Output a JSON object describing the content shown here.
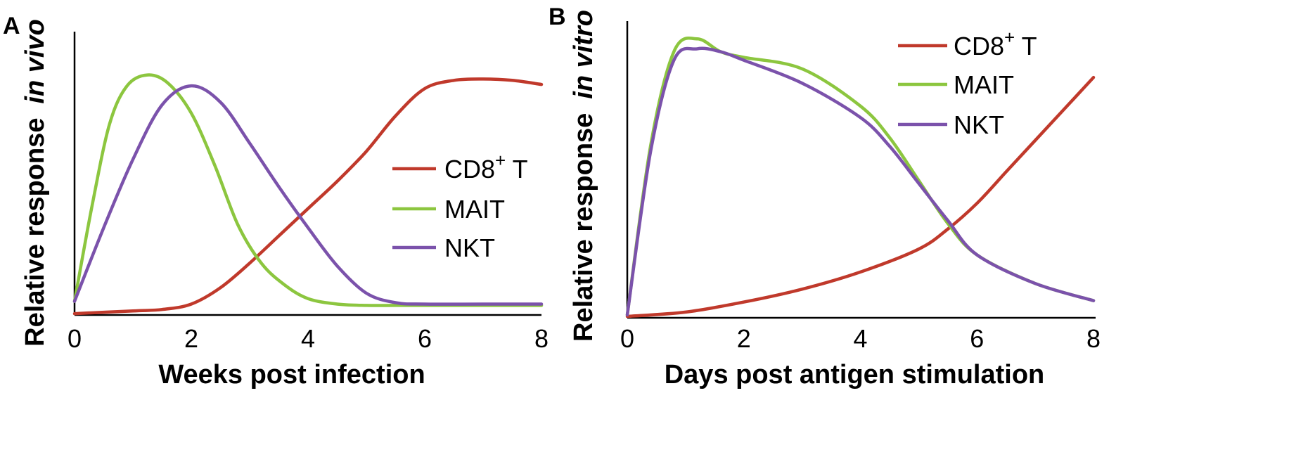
{
  "chart_data": [
    {
      "type": "line",
      "panel": "A",
      "xlabel": "Weeks post infection",
      "ylabel": "Relative response",
      "ylabel_italic": "in vivo",
      "xlim": [
        0,
        8
      ],
      "ylim": [
        0,
        1
      ],
      "xticks": [
        "0",
        "2",
        "4",
        "6",
        "8"
      ],
      "grid": false,
      "legend_position": "right",
      "series": [
        {
          "name": "CD8",
          "name_sup": "+",
          "name_suffix": " T",
          "color": "#c0392b",
          "x": [
            0,
            1,
            1.5,
            2,
            2.5,
            3,
            3.5,
            4,
            4.5,
            5,
            5.5,
            6,
            6.5,
            7,
            7.5,
            8
          ],
          "y": [
            0.005,
            0.015,
            0.02,
            0.04,
            0.1,
            0.19,
            0.29,
            0.39,
            0.49,
            0.6,
            0.73,
            0.83,
            0.86,
            0.865,
            0.86,
            0.845
          ]
        },
        {
          "name": "MAIT",
          "color": "#8cc63f",
          "x": [
            0,
            0.3,
            0.6,
            0.9,
            1.25,
            1.6,
            2,
            2.4,
            2.8,
            3.2,
            3.6,
            4,
            4.5,
            5,
            5.5,
            6,
            7,
            8
          ],
          "y": [
            0.05,
            0.4,
            0.7,
            0.84,
            0.88,
            0.85,
            0.74,
            0.55,
            0.33,
            0.19,
            0.11,
            0.06,
            0.04,
            0.035,
            0.035,
            0.035,
            0.035,
            0.035
          ]
        },
        {
          "name": "NKT",
          "color": "#7b52ab",
          "x": [
            0,
            0.5,
            1,
            1.5,
            2,
            2.5,
            3,
            3.5,
            4,
            4.5,
            5,
            5.5,
            6,
            7,
            8
          ],
          "y": [
            0.05,
            0.32,
            0.57,
            0.77,
            0.84,
            0.78,
            0.63,
            0.47,
            0.32,
            0.18,
            0.08,
            0.045,
            0.04,
            0.04,
            0.04
          ]
        }
      ]
    },
    {
      "type": "line",
      "panel": "B",
      "xlabel": "Days post antigen stimulation",
      "ylabel": "Relative response",
      "ylabel_italic": "in vitro",
      "xlim": [
        0,
        8
      ],
      "ylim": [
        0,
        1
      ],
      "xticks": [
        "0",
        "2",
        "4",
        "6",
        "8"
      ],
      "grid": false,
      "legend_position": "top-right",
      "series": [
        {
          "name": "CD8",
          "name_sup": "+",
          "name_suffix": " T",
          "color": "#c0392b",
          "x": [
            0,
            1,
            2,
            3,
            4,
            5,
            5.5,
            6,
            6.5,
            7,
            7.5,
            8
          ],
          "y": [
            0.005,
            0.02,
            0.055,
            0.1,
            0.16,
            0.24,
            0.31,
            0.4,
            0.51,
            0.62,
            0.73,
            0.84
          ]
        },
        {
          "name": "MAIT",
          "color": "#8cc63f",
          "x": [
            0,
            0.4,
            0.8,
            1.2,
            1.6,
            2,
            3,
            4,
            4.5,
            5,
            5.5,
            6,
            7,
            8
          ],
          "y": [
            0.01,
            0.6,
            0.93,
            0.975,
            0.93,
            0.91,
            0.87,
            0.74,
            0.63,
            0.48,
            0.33,
            0.22,
            0.12,
            0.06
          ]
        },
        {
          "name": "NKT",
          "color": "#7b52ab",
          "x": [
            0,
            0.4,
            0.8,
            1.2,
            1.6,
            2,
            3,
            4,
            4.5,
            5,
            5.5,
            6,
            7,
            8
          ],
          "y": [
            0.01,
            0.58,
            0.9,
            0.94,
            0.93,
            0.9,
            0.82,
            0.7,
            0.6,
            0.47,
            0.34,
            0.22,
            0.12,
            0.06
          ]
        }
      ]
    }
  ]
}
